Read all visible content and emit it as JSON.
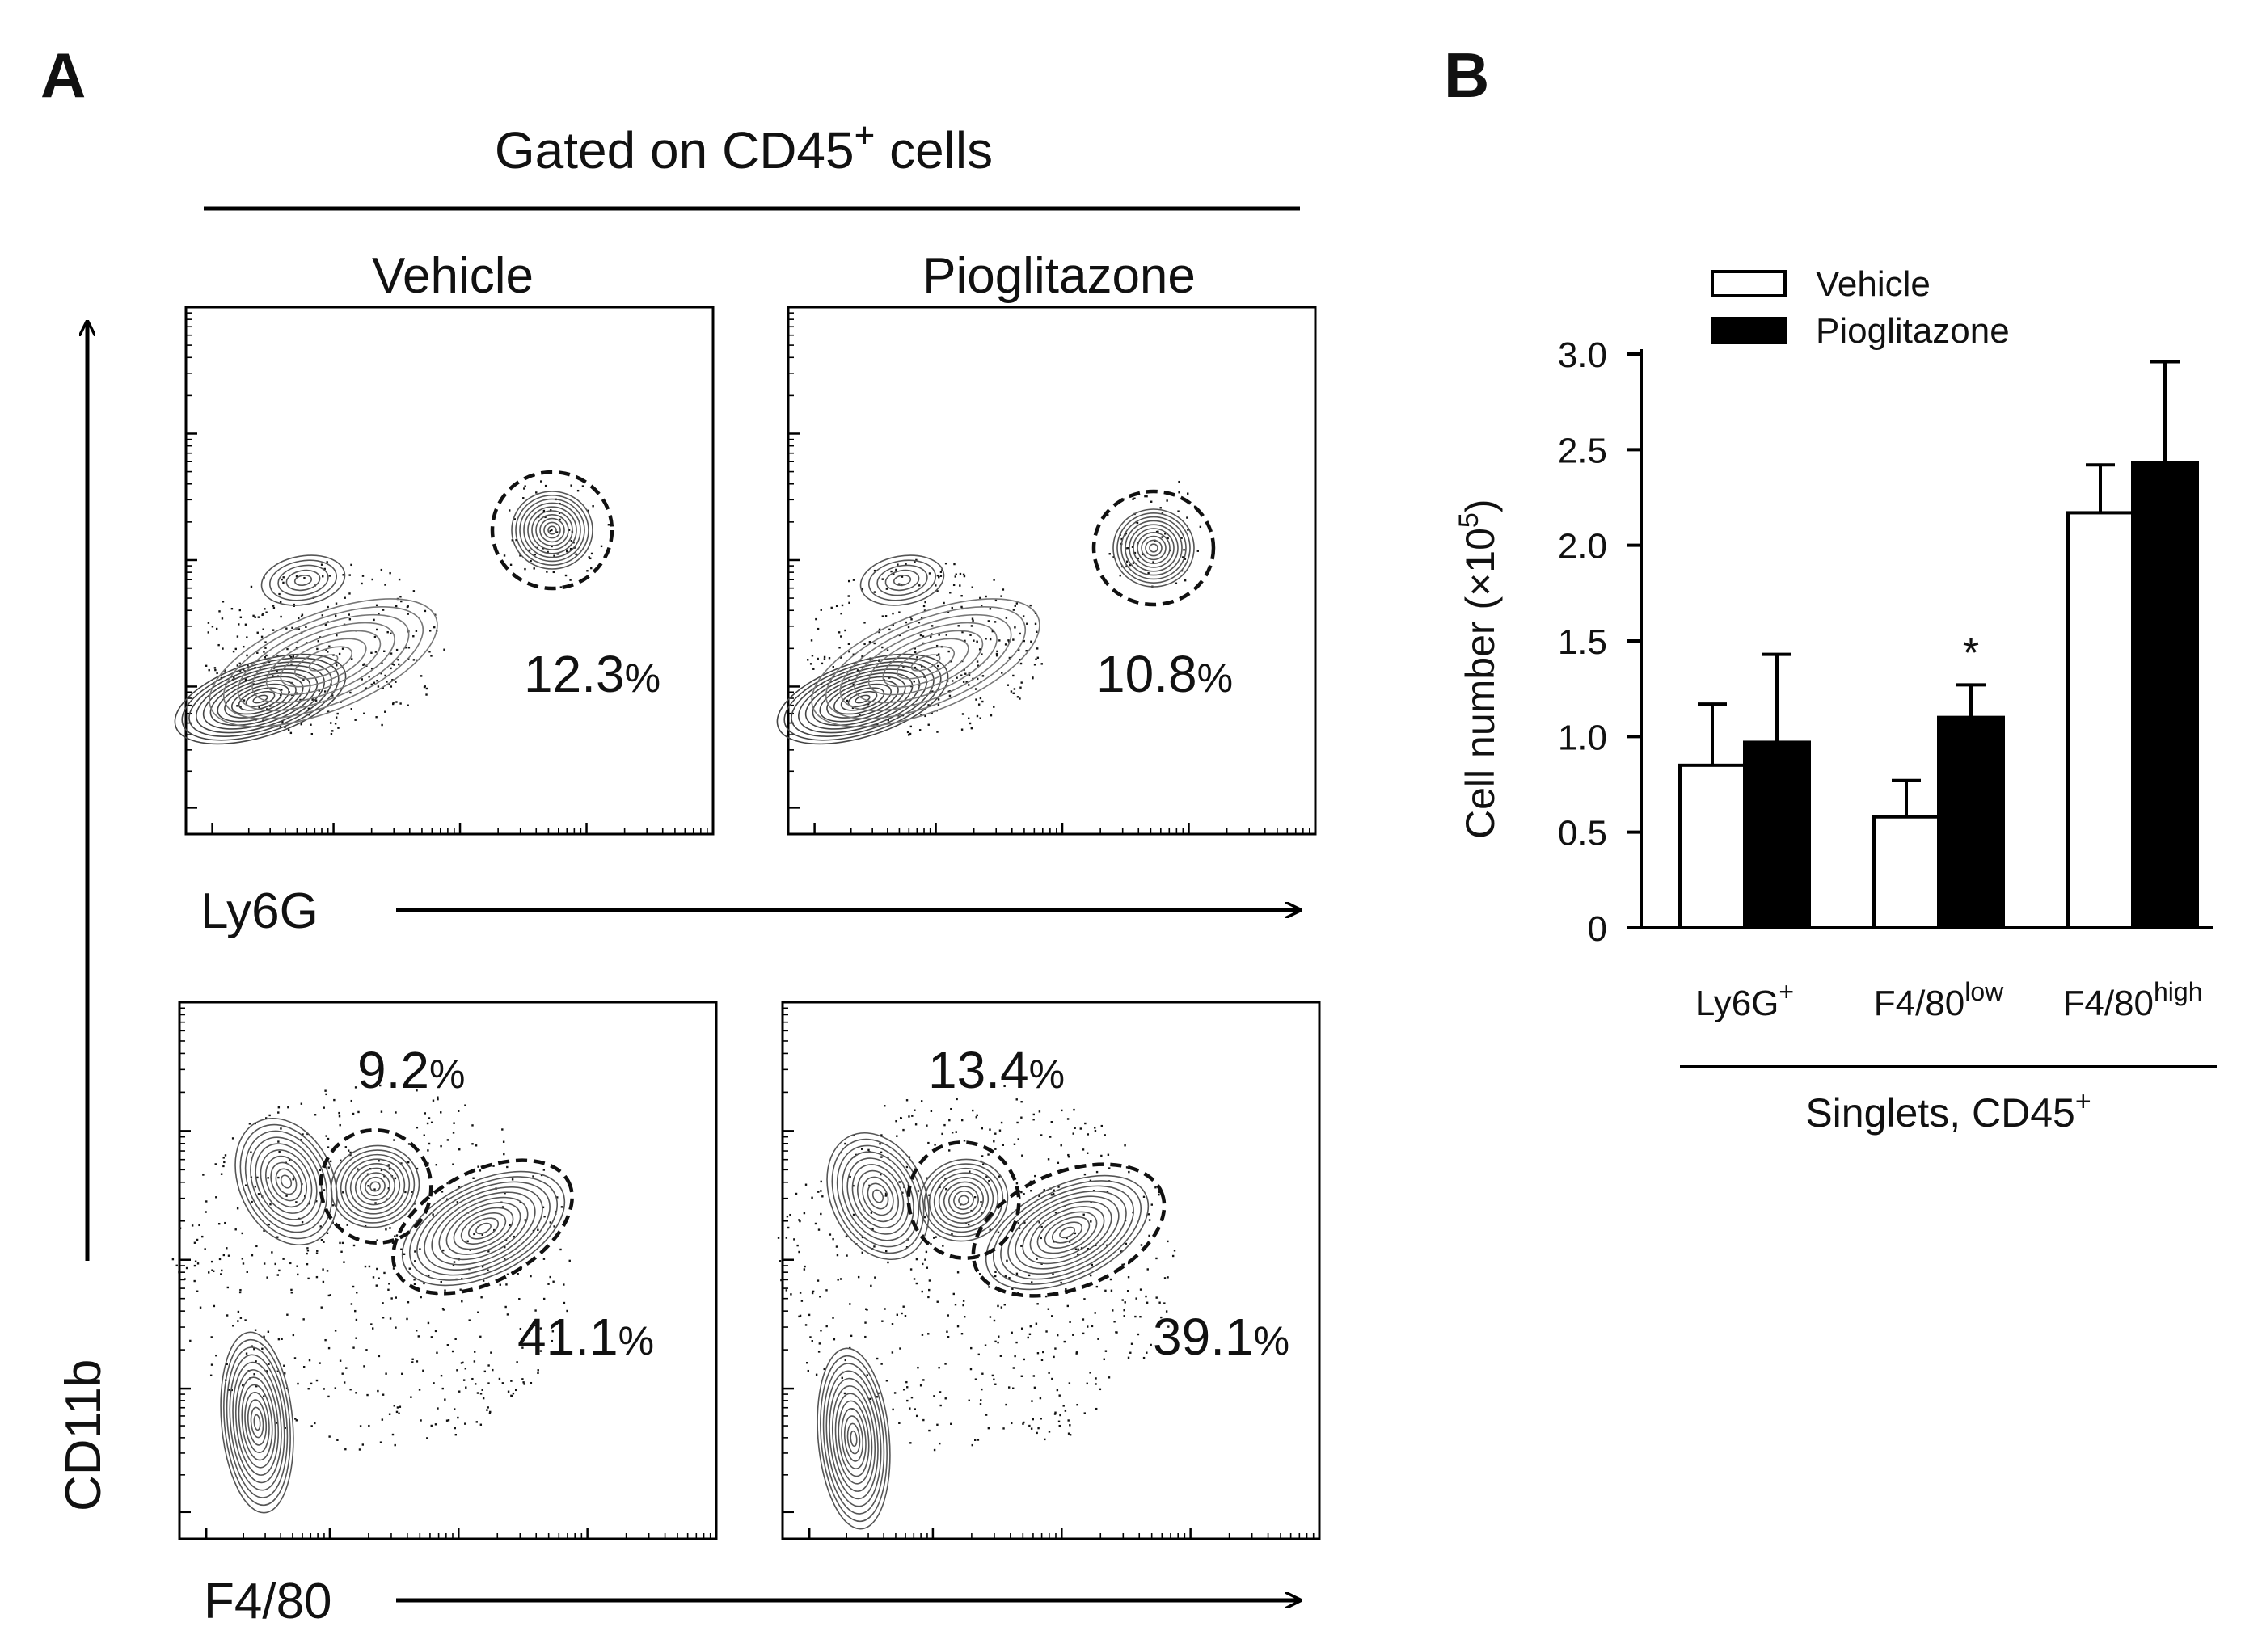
{
  "panel_a": {
    "letter": "A",
    "gate_header": "Gated on CD45",
    "gate_header_sup": "+",
    "gate_header_suffix": " cells",
    "y_axis_label": "CD11b",
    "conditions": [
      "Vehicle",
      "Pioglitazone"
    ],
    "rows": [
      {
        "x_axis_label": "Ly6G",
        "plots": [
          {
            "condition": "Vehicle",
            "gates": [
              {
                "value": "12.3",
                "unit": "%"
              }
            ]
          },
          {
            "condition": "Pioglitazone",
            "gates": [
              {
                "value": "10.8",
                "unit": "%"
              }
            ]
          }
        ]
      },
      {
        "x_axis_label": "F4/80",
        "plots": [
          {
            "condition": "Vehicle",
            "gates": [
              {
                "value": "9.2",
                "unit": "%"
              },
              {
                "value": "41.1",
                "unit": "%"
              }
            ]
          },
          {
            "condition": "Pioglitazone",
            "gates": [
              {
                "value": "13.4",
                "unit": "%"
              },
              {
                "value": "39.1",
                "unit": "%"
              }
            ]
          }
        ]
      }
    ]
  },
  "chart_data": {
    "type": "bar",
    "panel_letter": "B",
    "ylabel": "Cell number (×10",
    "ylabel_sup": "5",
    "ylabel_suffix": ")",
    "ylim": [
      0,
      3.0
    ],
    "y_ticks": [
      "0",
      "0.5",
      "1.0",
      "1.5",
      "2.0",
      "2.5",
      "3.0"
    ],
    "y_tick_values": [
      0,
      0.5,
      1.0,
      1.5,
      2.0,
      2.5,
      3.0
    ],
    "categories": [
      {
        "base": "Ly6G",
        "sup": "+"
      },
      {
        "base": "F4/80",
        "sup": "low"
      },
      {
        "base": "F4/80",
        "sup": "high"
      }
    ],
    "series": [
      {
        "name": "Vehicle",
        "color": "#ffffff",
        "values": [
          0.85,
          0.58,
          2.17
        ],
        "errors": [
          0.32,
          0.19,
          0.25
        ]
      },
      {
        "name": "Pioglitazone",
        "color": "#000000",
        "values": [
          0.97,
          1.1,
          2.43
        ],
        "errors": [
          0.46,
          0.17,
          0.53
        ]
      }
    ],
    "significance": [
      {
        "category_index": 1,
        "series_index": 1,
        "mark": "*"
      }
    ],
    "group_label": "Singlets, CD45",
    "group_label_sup": "+",
    "legend_position": "top-left"
  }
}
